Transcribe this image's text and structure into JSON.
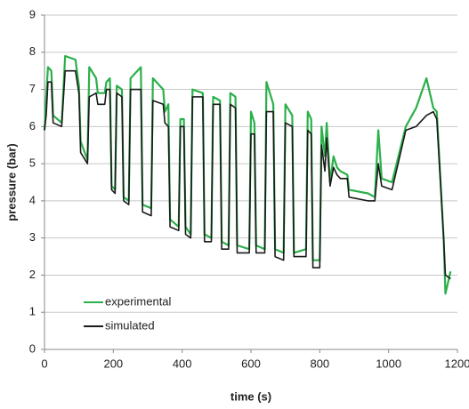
{
  "chart_data": {
    "type": "line",
    "xlabel": "time (s)",
    "ylabel": "pressure (bar)",
    "x": [
      0,
      5,
      10,
      20,
      25,
      50,
      60,
      90,
      100,
      105,
      125,
      130,
      150,
      155,
      175,
      180,
      190,
      195,
      205,
      210,
      225,
      230,
      245,
      250,
      280,
      285,
      310,
      315,
      345,
      350,
      360,
      365,
      390,
      395,
      405,
      410,
      425,
      430,
      460,
      465,
      485,
      490,
      510,
      515,
      535,
      540,
      555,
      560,
      595,
      600,
      610,
      615,
      640,
      645,
      665,
      670,
      695,
      700,
      720,
      725,
      760,
      765,
      775,
      780,
      800,
      805,
      815,
      820,
      830,
      840,
      850,
      860,
      880,
      885,
      940,
      960,
      970,
      980,
      1010,
      1050,
      1080,
      1110,
      1130,
      1140,
      1160,
      1165,
      1180
    ],
    "series": [
      {
        "name": "experimental",
        "color": "#2bb04a",
        "values": [
          5.9,
          6.8,
          7.6,
          7.5,
          6.3,
          6.1,
          7.9,
          7.8,
          7.1,
          5.6,
          5.1,
          7.6,
          7.3,
          6.9,
          6.9,
          7.2,
          7.3,
          4.4,
          4.3,
          7.1,
          7.0,
          4.1,
          4.0,
          7.3,
          7.6,
          3.9,
          3.8,
          7.3,
          7.0,
          6.4,
          6.6,
          3.5,
          3.3,
          6.2,
          6.2,
          3.3,
          3.1,
          7.0,
          6.9,
          3.1,
          3.0,
          6.8,
          6.7,
          2.9,
          2.8,
          6.9,
          6.8,
          2.8,
          2.7,
          6.4,
          6.1,
          2.8,
          2.7,
          7.2,
          6.6,
          2.7,
          2.6,
          6.6,
          6.3,
          2.6,
          2.7,
          6.4,
          6.2,
          2.4,
          2.4,
          6.0,
          5.2,
          6.1,
          4.5,
          5.2,
          4.9,
          4.8,
          4.7,
          4.3,
          4.2,
          4.1,
          5.9,
          4.6,
          4.5,
          6.0,
          6.5,
          7.3,
          6.5,
          6.4,
          3.0,
          1.5,
          2.1
        ]
      },
      {
        "name": "simulated",
        "color": "#1a1a1a",
        "values": [
          5.9,
          6.3,
          7.2,
          7.2,
          6.1,
          6.0,
          7.5,
          7.5,
          6.9,
          5.3,
          5.0,
          6.8,
          6.9,
          6.6,
          6.6,
          7.0,
          7.0,
          4.3,
          4.2,
          6.9,
          6.8,
          4.0,
          3.9,
          7.0,
          7.0,
          3.7,
          3.6,
          6.7,
          6.6,
          6.1,
          6.0,
          3.3,
          3.2,
          6.0,
          6.0,
          3.1,
          3.0,
          6.8,
          6.8,
          2.9,
          2.9,
          6.6,
          6.6,
          2.7,
          2.7,
          6.6,
          6.5,
          2.6,
          2.6,
          5.8,
          5.8,
          2.6,
          2.6,
          6.4,
          6.4,
          2.5,
          2.4,
          6.1,
          6.0,
          2.5,
          2.5,
          5.9,
          5.8,
          2.2,
          2.2,
          5.5,
          4.8,
          5.7,
          4.4,
          4.9,
          4.7,
          4.6,
          4.6,
          4.1,
          4.0,
          4.0,
          5.0,
          4.4,
          4.3,
          5.9,
          6.0,
          6.3,
          6.4,
          6.2,
          3.0,
          2.0,
          1.9
        ]
      }
    ],
    "xlim": [
      0,
      1200
    ],
    "xticks": [
      0,
      200,
      400,
      600,
      800,
      1000,
      1200
    ],
    "ylim": [
      0,
      9
    ],
    "yticks": [
      0,
      1,
      2,
      3,
      4,
      5,
      6,
      7,
      8,
      9
    ],
    "grid": true,
    "legend": "lower left"
  }
}
